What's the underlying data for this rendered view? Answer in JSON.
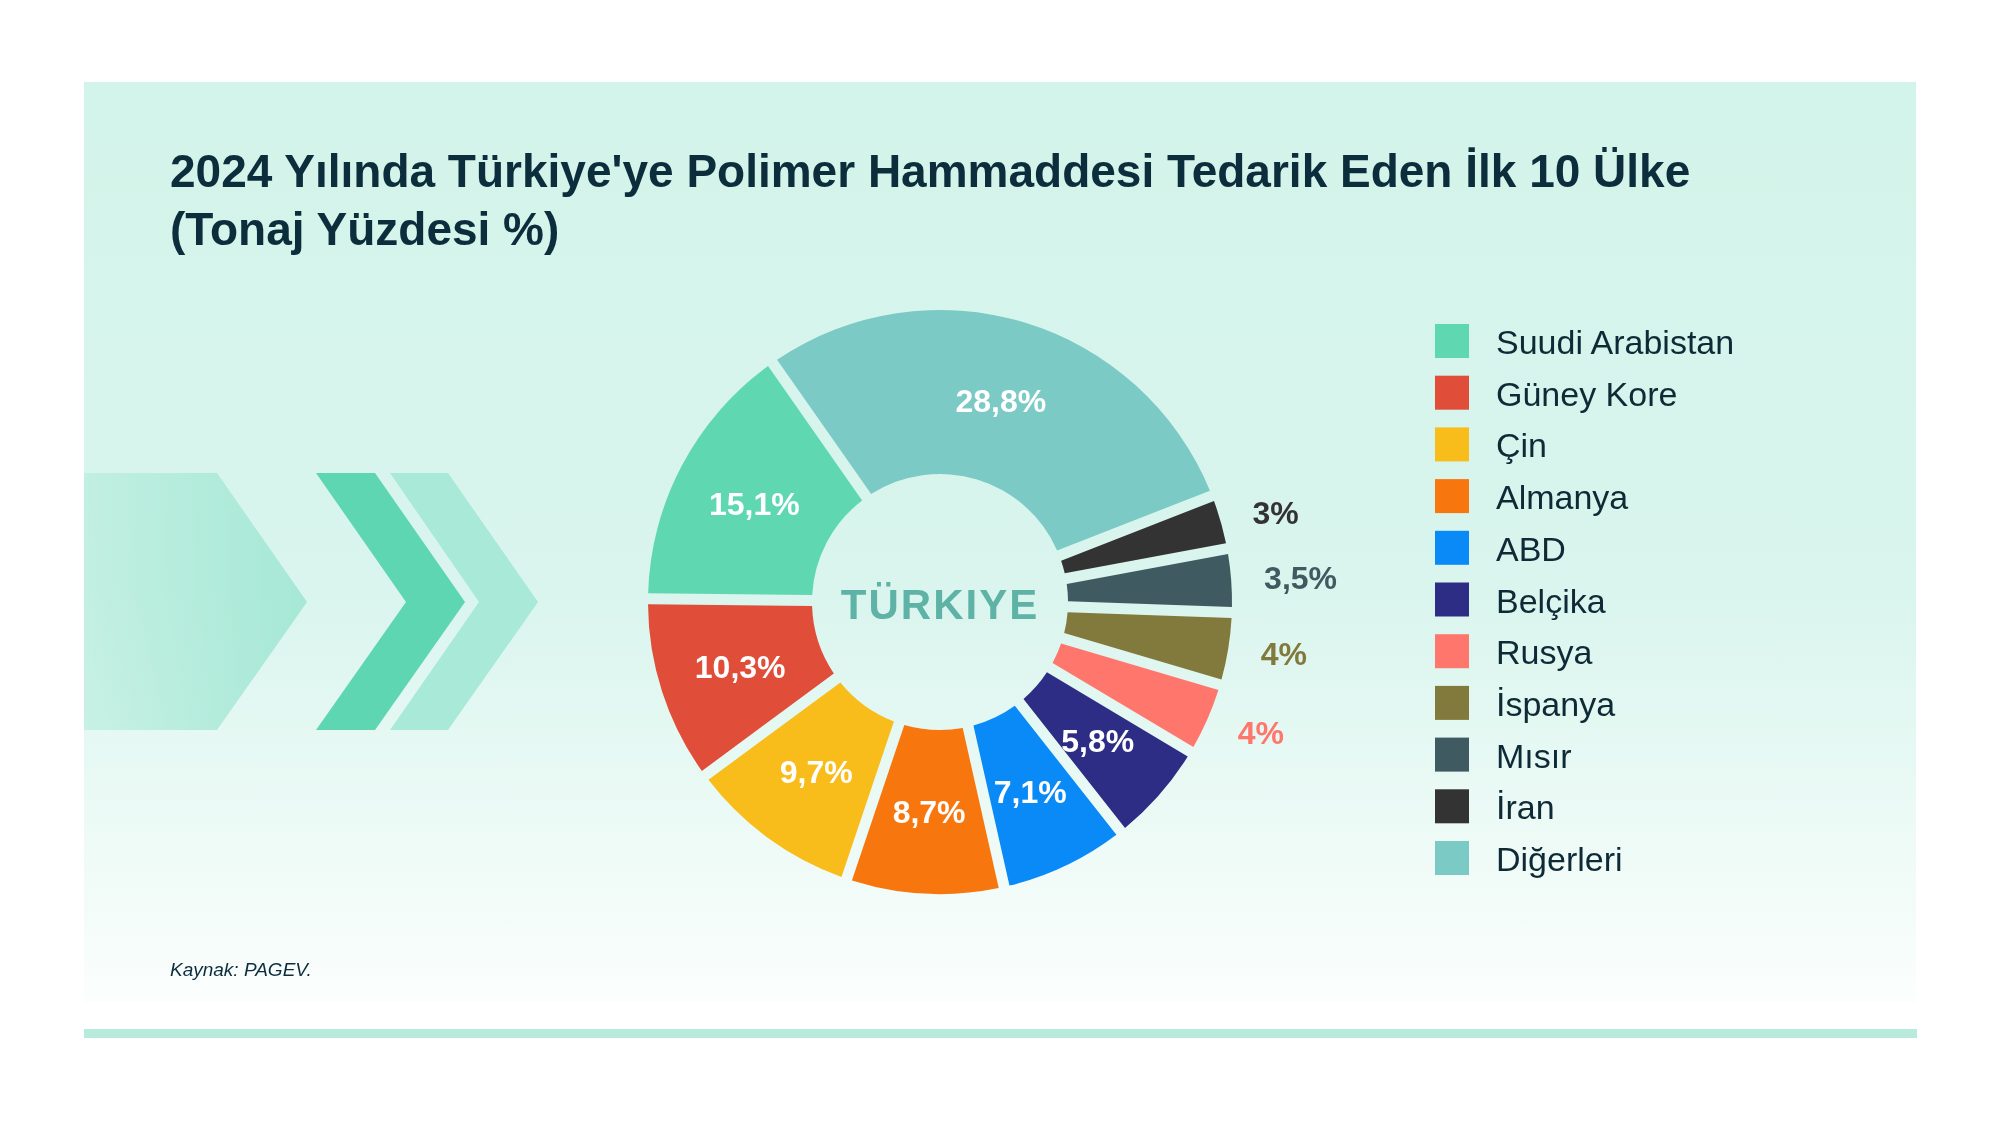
{
  "chart_data": {
    "type": "donut",
    "title": "2024 Yılında Türkiye'ye Polimer Hammaddesi Tedarik Eden İlk 10 Ülke (Tonaj Yüzdesi %)",
    "categories": [
      "Suudi Arabistan",
      "Güney Kore",
      "Çin",
      "Almanya",
      "ABD",
      "Belçika",
      "Rusya",
      "İspanya",
      "Mısır",
      "İran",
      "Diğerleri"
    ],
    "values": [
      15.1,
      10.3,
      9.7,
      8.7,
      7.1,
      5.8,
      4,
      4,
      3.5,
      3,
      28.8
    ],
    "colors": [
      "#5fd8b2",
      "#e04e39",
      "#f8bd1a",
      "#f7770e",
      "#0a8af6",
      "#2e2d85",
      "#ff766d",
      "#817a3c",
      "#405a62",
      "#333333",
      "#7ccac6"
    ],
    "value_labels": [
      "15,1%",
      "10,3%",
      "9,7%",
      "8,7%",
      "7,1%",
      "5,8%",
      "4%",
      "4%",
      "3,5%",
      "3%",
      "28,8%"
    ],
    "legend": "right",
    "annotations": [
      "TÜRKIYE",
      "Kaynak: PAGEV."
    ]
  }
}
